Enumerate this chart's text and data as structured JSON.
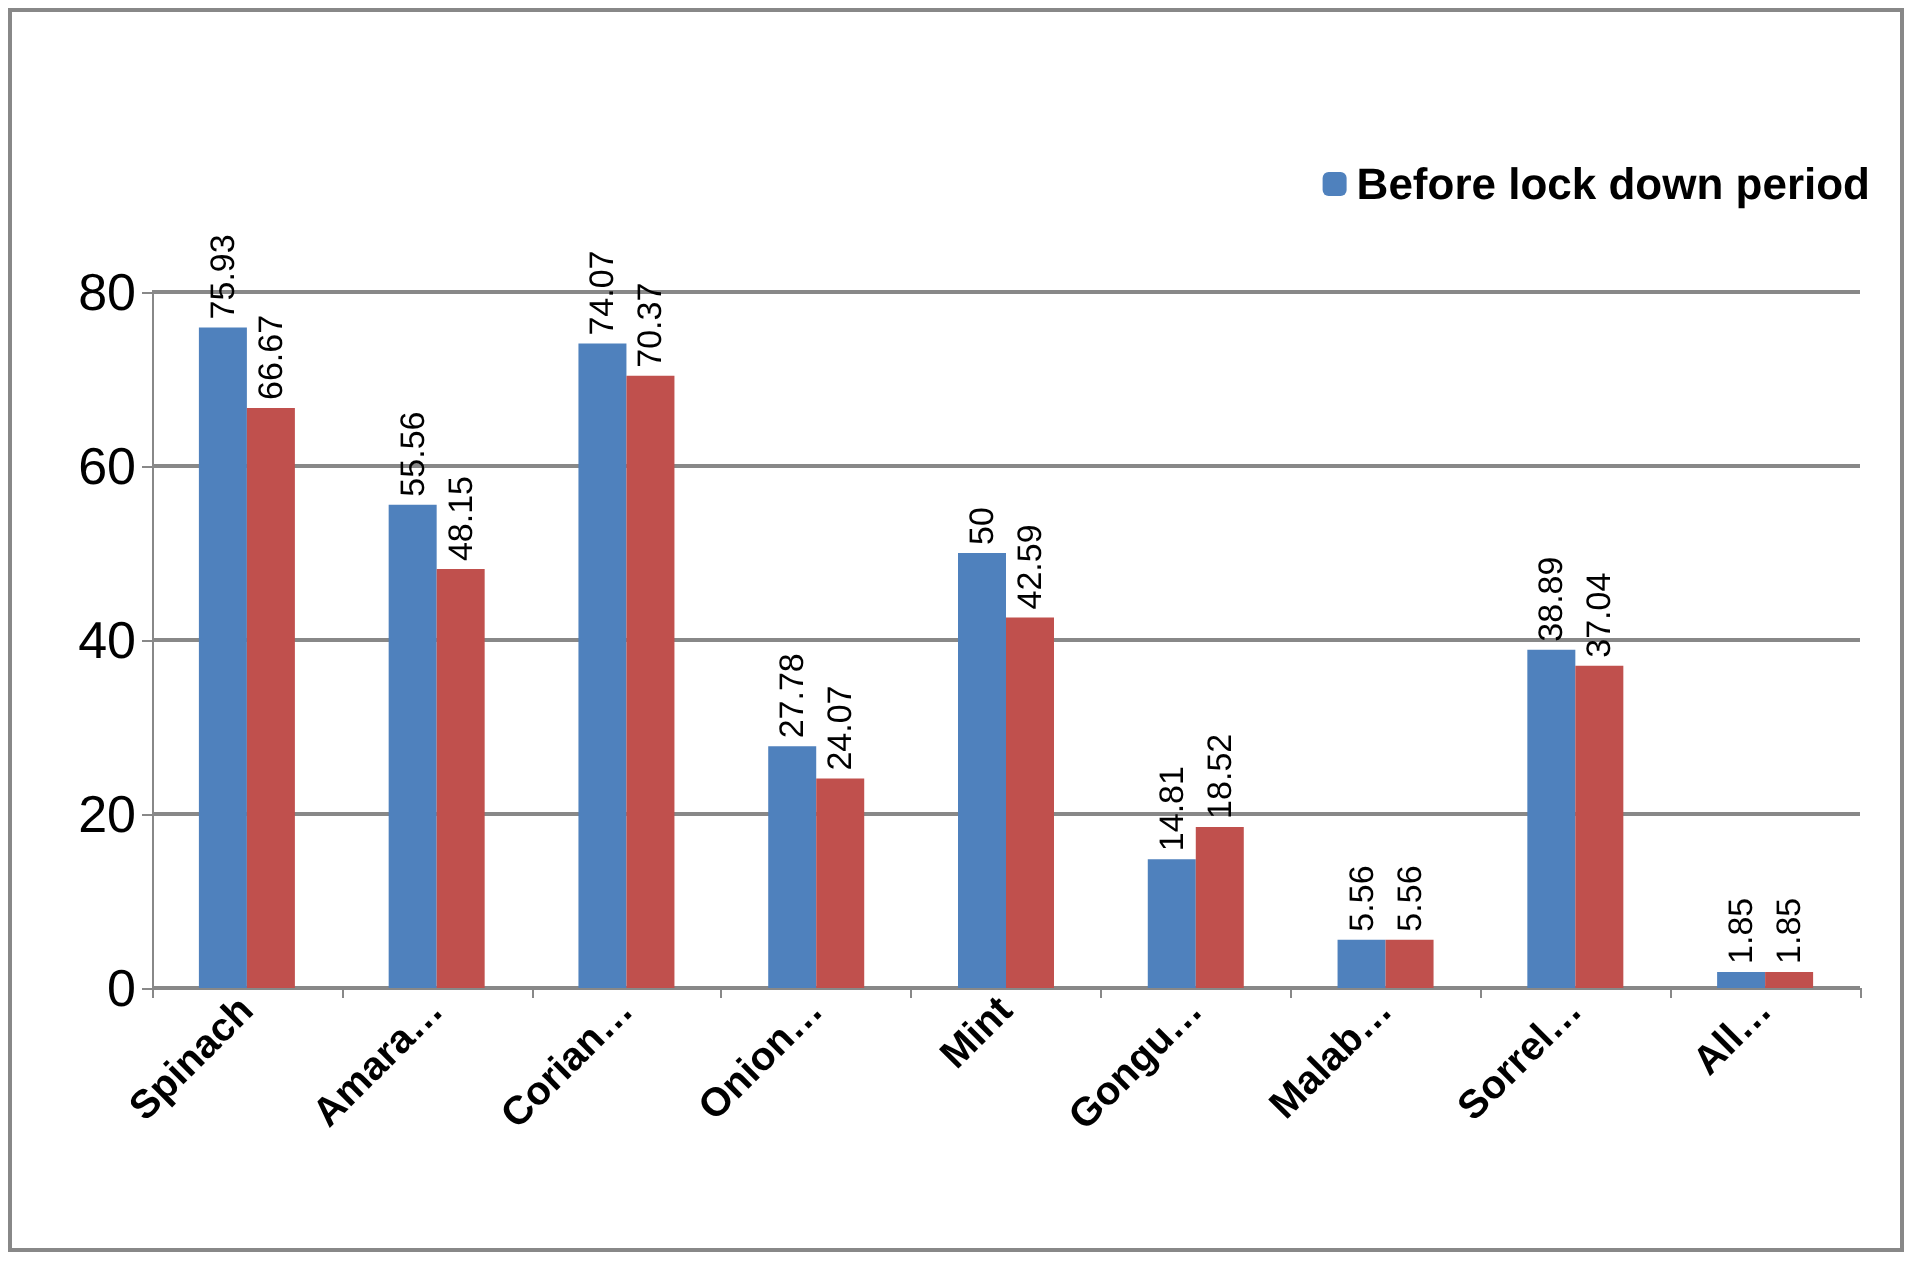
{
  "chart_data": {
    "type": "bar",
    "categories": [
      "Spinach",
      "Amara…",
      "Corian…",
      "Onion…",
      "Mint",
      "Gongu…",
      "Malab…",
      "Sorrel…",
      "All…"
    ],
    "series": [
      {
        "name": "Before lock down period",
        "color": "#4f81bd",
        "values": [
          75.93,
          55.56,
          74.07,
          27.78,
          50,
          14.81,
          5.56,
          38.89,
          1.85
        ]
      },
      {
        "color": "#c0504d",
        "values": [
          66.67,
          48.15,
          70.37,
          24.07,
          42.59,
          18.52,
          5.56,
          37.04,
          1.85
        ]
      }
    ],
    "ylim": [
      0,
      80
    ],
    "yticks": [
      0,
      20,
      40,
      60,
      80
    ],
    "grid": "y",
    "legend": "top right",
    "data_labels": true
  }
}
